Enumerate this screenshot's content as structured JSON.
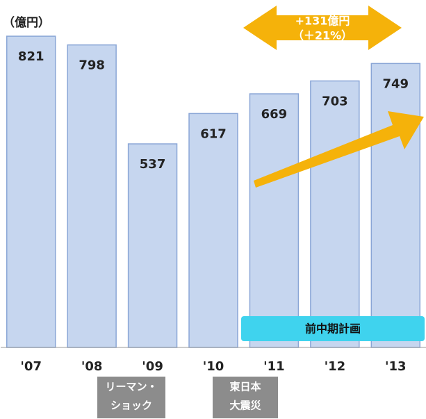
{
  "chart_data": {
    "type": "bar",
    "unit_label": "（億円）",
    "categories": [
      "'07",
      "'08",
      "'09",
      "'10",
      "'11",
      "'12",
      "'13"
    ],
    "values": [
      821,
      798,
      537,
      617,
      669,
      703,
      749
    ],
    "color": "#c6d6ef",
    "ylim": [
      0,
      900
    ],
    "annotations": {
      "growth": [
        "+131億円",
        "（＋21%）"
      ],
      "plan": "前中期計画",
      "events": [
        [
          "リーマン・",
          "ショック"
        ],
        [
          "東日本",
          "大震災"
        ]
      ]
    }
  }
}
